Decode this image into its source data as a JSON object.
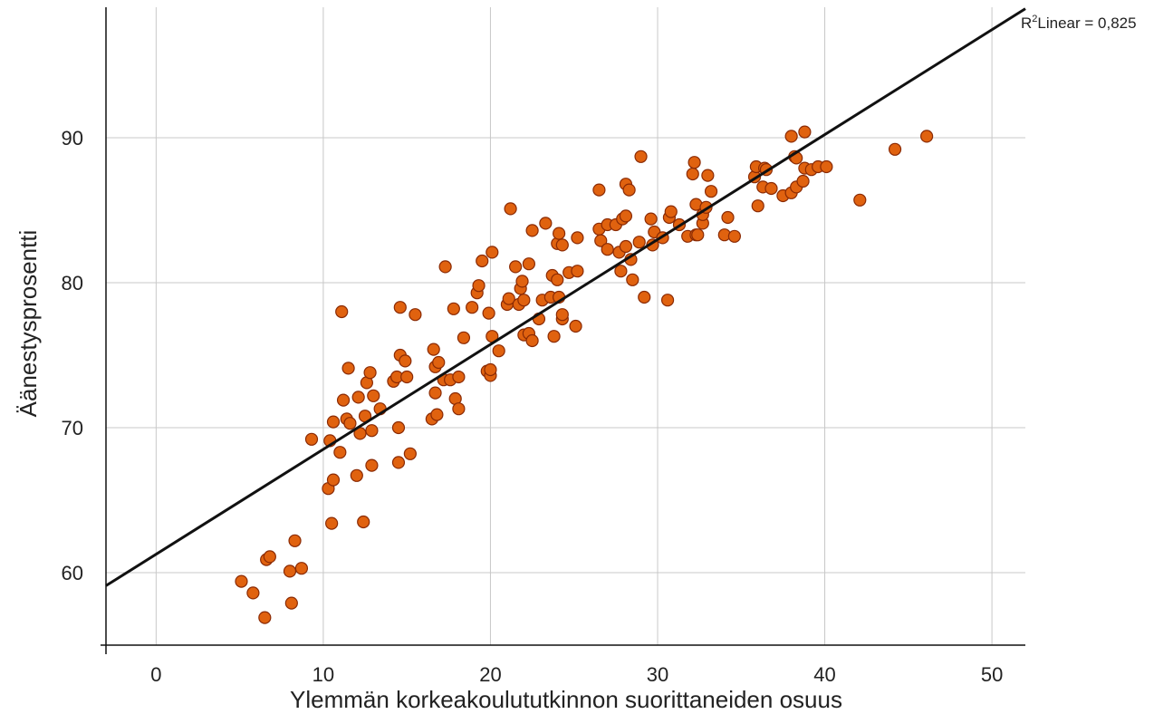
{
  "chart_data": {
    "type": "scatter",
    "xlabel": "Ylemmän korkeakoulututkinnon suorittaneiden osuus",
    "ylabel": "Äänestysprosentti",
    "xlim": [
      -3,
      52
    ],
    "ylim": [
      55,
      99
    ],
    "x_ticks": [
      0,
      10,
      20,
      30,
      40,
      50
    ],
    "y_ticks": [
      60,
      70,
      80,
      90
    ],
    "x_tick_labels": [
      "0",
      "10",
      "20",
      "30",
      "40",
      "50"
    ],
    "y_tick_labels": [
      "60",
      "70",
      "80",
      "90"
    ],
    "grid": true,
    "point_color": "#e0620f",
    "point_edge_color": "#8a2a04",
    "fit_line": {
      "label": "R²Linear = 0,825",
      "label_prefix": "R",
      "label_sup": "2",
      "label_rest": "Linear = 0,825",
      "x": [
        -3,
        52
      ],
      "y": [
        59.1,
        98.9
      ],
      "color": "#111111"
    },
    "points": [
      [
        5.1,
        59.4
      ],
      [
        5.8,
        58.6
      ],
      [
        6.5,
        56.9
      ],
      [
        6.6,
        60.9
      ],
      [
        6.8,
        61.1
      ],
      [
        8.0,
        60.1
      ],
      [
        8.1,
        57.9
      ],
      [
        8.3,
        62.2
      ],
      [
        8.7,
        60.3
      ],
      [
        9.3,
        69.2
      ],
      [
        10.3,
        65.8
      ],
      [
        10.4,
        69.1
      ],
      [
        10.5,
        63.4
      ],
      [
        10.6,
        66.4
      ],
      [
        10.6,
        70.4
      ],
      [
        11.0,
        68.3
      ],
      [
        11.1,
        78.0
      ],
      [
        11.2,
        71.9
      ],
      [
        11.4,
        70.6
      ],
      [
        11.5,
        74.1
      ],
      [
        11.6,
        70.3
      ],
      [
        12.0,
        66.7
      ],
      [
        12.1,
        72.1
      ],
      [
        12.2,
        69.6
      ],
      [
        12.4,
        63.5
      ],
      [
        12.5,
        70.8
      ],
      [
        12.6,
        73.1
      ],
      [
        12.8,
        73.8
      ],
      [
        12.9,
        69.8
      ],
      [
        12.9,
        67.4
      ],
      [
        13.0,
        72.2
      ],
      [
        13.4,
        71.3
      ],
      [
        14.2,
        73.2
      ],
      [
        14.4,
        73.5
      ],
      [
        14.5,
        67.6
      ],
      [
        14.5,
        70.0
      ],
      [
        14.6,
        75.0
      ],
      [
        14.6,
        78.3
      ],
      [
        14.9,
        74.6
      ],
      [
        15.0,
        73.5
      ],
      [
        15.2,
        68.2
      ],
      [
        15.5,
        77.8
      ],
      [
        16.5,
        70.6
      ],
      [
        16.6,
        75.4
      ],
      [
        16.7,
        72.4
      ],
      [
        16.7,
        74.2
      ],
      [
        16.8,
        70.9
      ],
      [
        16.9,
        74.5
      ],
      [
        17.2,
        73.3
      ],
      [
        17.3,
        81.1
      ],
      [
        17.6,
        73.3
      ],
      [
        17.8,
        78.2
      ],
      [
        17.9,
        72.0
      ],
      [
        18.1,
        71.3
      ],
      [
        18.1,
        73.5
      ],
      [
        18.4,
        76.2
      ],
      [
        18.9,
        78.3
      ],
      [
        19.2,
        79.3
      ],
      [
        19.3,
        79.8
      ],
      [
        19.5,
        81.5
      ],
      [
        19.8,
        73.9
      ],
      [
        19.9,
        77.9
      ],
      [
        20.0,
        73.6
      ],
      [
        20.0,
        74.0
      ],
      [
        20.1,
        82.1
      ],
      [
        20.1,
        76.3
      ],
      [
        20.5,
        75.3
      ],
      [
        21.0,
        78.5
      ],
      [
        21.1,
        78.9
      ],
      [
        21.2,
        85.1
      ],
      [
        21.5,
        81.1
      ],
      [
        21.7,
        78.5
      ],
      [
        21.8,
        79.6
      ],
      [
        21.9,
        80.1
      ],
      [
        22.0,
        76.4
      ],
      [
        22.0,
        78.8
      ],
      [
        22.3,
        76.5
      ],
      [
        22.3,
        81.3
      ],
      [
        22.5,
        76.0
      ],
      [
        22.5,
        83.6
      ],
      [
        22.9,
        77.5
      ],
      [
        23.1,
        78.8
      ],
      [
        23.3,
        84.1
      ],
      [
        23.6,
        79.0
      ],
      [
        23.7,
        80.5
      ],
      [
        23.8,
        76.3
      ],
      [
        24.0,
        80.2
      ],
      [
        24.0,
        82.7
      ],
      [
        24.1,
        79.0
      ],
      [
        24.1,
        83.4
      ],
      [
        24.3,
        77.5
      ],
      [
        24.3,
        77.8
      ],
      [
        24.3,
        82.6
      ],
      [
        24.7,
        80.7
      ],
      [
        25.1,
        77.0
      ],
      [
        25.2,
        80.8
      ],
      [
        25.2,
        83.1
      ],
      [
        26.5,
        83.7
      ],
      [
        26.5,
        86.4
      ],
      [
        26.6,
        82.9
      ],
      [
        27.0,
        82.3
      ],
      [
        27.0,
        84.0
      ],
      [
        27.5,
        84.0
      ],
      [
        27.7,
        82.1
      ],
      [
        27.8,
        80.8
      ],
      [
        27.9,
        84.4
      ],
      [
        28.1,
        82.5
      ],
      [
        28.1,
        84.6
      ],
      [
        28.1,
        86.8
      ],
      [
        28.3,
        86.4
      ],
      [
        28.4,
        81.6
      ],
      [
        28.5,
        80.2
      ],
      [
        28.9,
        82.8
      ],
      [
        29.0,
        88.7
      ],
      [
        29.2,
        79.0
      ],
      [
        29.6,
        84.4
      ],
      [
        29.7,
        82.6
      ],
      [
        29.8,
        83.5
      ],
      [
        30.3,
        83.1
      ],
      [
        30.6,
        78.8
      ],
      [
        30.7,
        84.5
      ],
      [
        30.8,
        84.9
      ],
      [
        31.3,
        84.0
      ],
      [
        31.8,
        83.2
      ],
      [
        32.1,
        87.5
      ],
      [
        32.2,
        88.3
      ],
      [
        32.3,
        83.3
      ],
      [
        32.3,
        85.4
      ],
      [
        32.4,
        83.3
      ],
      [
        32.7,
        84.1
      ],
      [
        32.7,
        84.7
      ],
      [
        32.9,
        85.2
      ],
      [
        33.0,
        87.4
      ],
      [
        33.2,
        86.3
      ],
      [
        34.0,
        83.3
      ],
      [
        34.2,
        84.5
      ],
      [
        34.6,
        83.2
      ],
      [
        35.8,
        87.3
      ],
      [
        35.9,
        88.0
      ],
      [
        36.0,
        85.3
      ],
      [
        36.3,
        86.6
      ],
      [
        36.4,
        87.9
      ],
      [
        36.5,
        87.8
      ],
      [
        36.8,
        86.5
      ],
      [
        37.5,
        86.0
      ],
      [
        38.0,
        86.2
      ],
      [
        38.0,
        90.1
      ],
      [
        38.2,
        88.7
      ],
      [
        38.3,
        86.6
      ],
      [
        38.3,
        88.6
      ],
      [
        38.7,
        87.0
      ],
      [
        38.8,
        87.9
      ],
      [
        38.8,
        90.4
      ],
      [
        39.2,
        87.8
      ],
      [
        39.6,
        88.0
      ],
      [
        40.1,
        88.0
      ],
      [
        42.1,
        85.7
      ],
      [
        44.2,
        89.2
      ],
      [
        46.1,
        90.1
      ]
    ]
  }
}
